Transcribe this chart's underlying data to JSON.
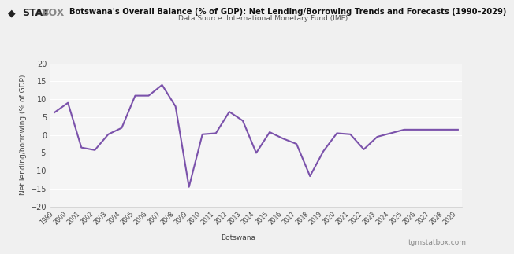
{
  "title": "Botswana's Overall Balance (% of GDP): Net Lending/Borrowing Trends and Forecasts (1990–2029)",
  "subtitle": "Data Source: International Monetary Fund (IMF)",
  "ylabel": "Net lending/borrowing (% of GDP)",
  "legend_label": "Botswana",
  "watermark": "tgmstatbox.com",
  "years": [
    1999,
    2000,
    2001,
    2002,
    2003,
    2004,
    2005,
    2006,
    2007,
    2008,
    2009,
    2010,
    2011,
    2012,
    2013,
    2014,
    2015,
    2016,
    2017,
    2018,
    2019,
    2020,
    2021,
    2022,
    2023,
    2024,
    2025,
    2026,
    2027,
    2028,
    2029
  ],
  "values": [
    6.3,
    9.0,
    -3.5,
    -4.2,
    0.2,
    2.0,
    11.0,
    11.0,
    14.0,
    8.0,
    -14.5,
    0.2,
    0.5,
    6.5,
    4.0,
    -5.0,
    0.8,
    -1.0,
    -2.5,
    -11.5,
    -4.5,
    0.5,
    0.2,
    -4.0,
    -0.5,
    0.5,
    1.5,
    1.5,
    1.5,
    1.5,
    1.5
  ],
  "line_color": "#7B52AB",
  "ylim": [
    -20,
    20
  ],
  "yticks": [
    -20,
    -15,
    -10,
    -5,
    0,
    5,
    10,
    15,
    20
  ],
  "bg_color": "#f0f0f0",
  "plot_bg": "#f5f5f5",
  "grid_color": "#ffffff",
  "text_color": "#444444",
  "title_color": "#111111",
  "subtitle_color": "#555555",
  "watermark_color": "#888888"
}
